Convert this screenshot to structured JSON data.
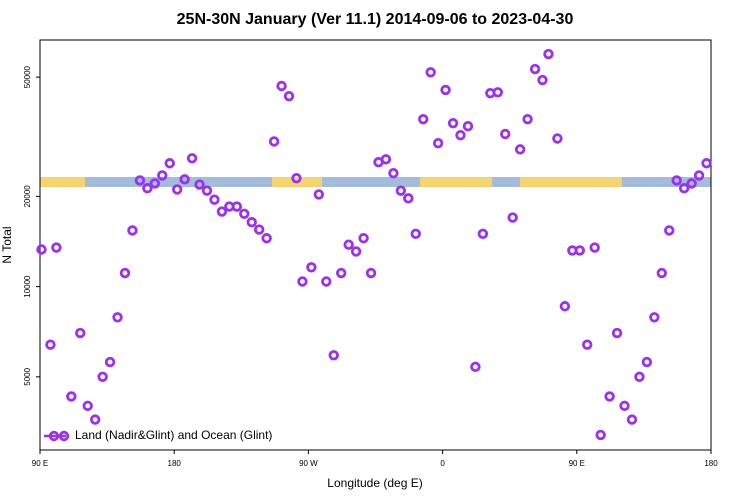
{
  "chart_data": {
    "type": "scatter",
    "title": "25N-30N January (Ver 11.1)   2014-09-06 to 2023-04-30",
    "xlabel": "Longitude (deg E)",
    "ylabel": "N Total",
    "xlim": [
      90,
      540
    ],
    "ylim": [
      2850,
      66500
    ],
    "ylog": true,
    "xticks": [
      {
        "value": 90,
        "label": "90 E"
      },
      {
        "value": 180,
        "label": "180"
      },
      {
        "value": 270,
        "label": "90 W"
      },
      {
        "value": 360,
        "label": "0"
      },
      {
        "value": 450,
        "label": "90 E"
      },
      {
        "value": 540,
        "label": "180"
      }
    ],
    "yticks": [
      5000,
      10000,
      20000,
      50000
    ],
    "legend": "bottom-left",
    "series": [
      {
        "name": "Land (Nadir&Glint) and Ocean (Glint)",
        "color": "#9b30f0",
        "x": [
          91,
          97,
          101,
          111,
          117,
          122,
          127,
          132,
          137,
          142,
          147,
          152,
          157,
          162,
          167,
          172,
          177,
          182,
          187,
          192,
          197,
          202,
          207,
          212,
          217,
          222,
          227,
          232,
          237,
          242,
          247,
          252,
          257,
          262,
          266,
          272,
          277,
          282,
          287,
          292,
          297,
          302,
          307,
          312,
          317,
          322,
          327,
          332,
          337,
          342,
          347,
          352,
          357,
          362,
          367,
          372,
          377,
          382,
          387,
          392,
          397,
          402,
          407,
          412,
          417,
          422,
          427,
          431,
          437,
          442,
          447,
          452,
          457,
          462,
          466,
          472,
          477,
          482,
          487,
          492,
          497,
          502,
          507,
          512,
          517,
          522,
          527,
          532,
          537
        ],
        "values": [
          13300,
          6400,
          13500,
          4300,
          7000,
          4000,
          3600,
          5000,
          5600,
          7900,
          11100,
          15400,
          22600,
          21300,
          22100,
          23500,
          25800,
          21100,
          22800,
          26800,
          21900,
          20900,
          19500,
          17800,
          18500,
          18500,
          17500,
          16400,
          15500,
          14500,
          30500,
          46700,
          43200,
          23000,
          10400,
          11600,
          20300,
          10400,
          5900,
          11100,
          13800,
          13100,
          14500,
          11100,
          26000,
          26600,
          23900,
          20900,
          19700,
          15000,
          36200,
          51900,
          30100,
          45300,
          35100,
          32000,
          34300,
          5400,
          15000,
          44200,
          44500,
          32300,
          17000,
          28700,
          36200,
          53200,
          48900,
          59700,
          31200,
          8600,
          13200,
          13200,
          6400,
          13500,
          3200,
          4300,
          7000,
          4000,
          3600,
          5000,
          5600,
          7900,
          11100,
          15400,
          22600,
          21300,
          22100,
          23500,
          25800
        ]
      }
    ]
  }
}
